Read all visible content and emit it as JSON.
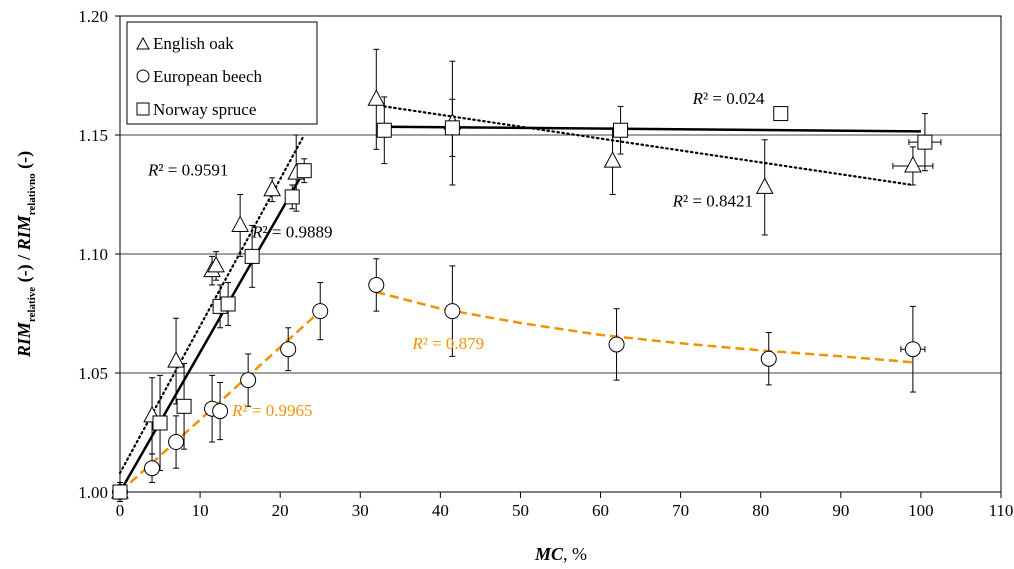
{
  "chart_data": {
    "type": "scatter",
    "xlabel_main": "MC",
    "xlabel_rest": ", %",
    "ylabel": {
      "part1": "RIM",
      "sub1": "relative",
      "part2": " (-) / ",
      "part3": "RIM",
      "sub2": "relativno",
      "part4": " (-)"
    },
    "xlim": [
      0,
      110
    ],
    "ylim": [
      1.0,
      1.2
    ],
    "xticks": [
      "0",
      "10",
      "20",
      "30",
      "40",
      "50",
      "60",
      "70",
      "80",
      "90",
      "100",
      "110"
    ],
    "yticks": [
      "1.00",
      "1.05",
      "1.10",
      "1.15",
      "1.20"
    ],
    "grid": "horizontal",
    "legend_position": "top-left",
    "series": [
      {
        "name": "English oak",
        "marker": "triangle",
        "color": "#000000",
        "points": [
          {
            "x": 0,
            "y": 1.0,
            "err": 0.004
          },
          {
            "x": 4,
            "y": 1.032,
            "err": 0.016
          },
          {
            "x": 7,
            "y": 1.055,
            "err": 0.018
          },
          {
            "x": 11.5,
            "y": 1.093,
            "err": 0.006
          },
          {
            "x": 12,
            "y": 1.095,
            "err": 0.006
          },
          {
            "x": 15,
            "y": 1.112,
            "err": 0.013
          },
          {
            "x": 19,
            "y": 1.127,
            "err": 0.005
          },
          {
            "x": 22,
            "y": 1.134,
            "err": 0.016
          },
          {
            "x": 32,
            "y": 1.165,
            "err": 0.021
          },
          {
            "x": 41.5,
            "y": 1.155,
            "err": 0.026
          },
          {
            "x": 61.5,
            "y": 1.139,
            "err": 0.014
          },
          {
            "x": 80.5,
            "y": 1.128,
            "err": 0.02
          },
          {
            "x": 99,
            "y": 1.137,
            "err": 0.008,
            "xerr": 2.5
          }
        ]
      },
      {
        "name": "European beech",
        "marker": "circle",
        "color": "#000000",
        "points": [
          {
            "x": 0,
            "y": 1.0,
            "err": 0.004
          },
          {
            "x": 4,
            "y": 1.01,
            "err": 0.006
          },
          {
            "x": 7,
            "y": 1.021,
            "err": 0.011
          },
          {
            "x": 11.5,
            "y": 1.035,
            "err": 0.014
          },
          {
            "x": 12.5,
            "y": 1.034,
            "err": 0.012
          },
          {
            "x": 16,
            "y": 1.047,
            "err": 0.011
          },
          {
            "x": 21,
            "y": 1.06,
            "err": 0.009
          },
          {
            "x": 25,
            "y": 1.076,
            "err": 0.012
          },
          {
            "x": 32,
            "y": 1.087,
            "err": 0.011
          },
          {
            "x": 41.5,
            "y": 1.076,
            "err": 0.019
          },
          {
            "x": 62,
            "y": 1.062,
            "err": 0.015
          },
          {
            "x": 81,
            "y": 1.056,
            "err": 0.011
          },
          {
            "x": 99,
            "y": 1.06,
            "err": 0.018,
            "xerr": 1.5
          }
        ]
      },
      {
        "name": "Norway spruce",
        "marker": "square",
        "color": "#000000",
        "points": [
          {
            "x": 0,
            "y": 1.0,
            "err": 0.004
          },
          {
            "x": 5,
            "y": 1.029,
            "err": 0.02
          },
          {
            "x": 8,
            "y": 1.036,
            "err": 0.018
          },
          {
            "x": 12.5,
            "y": 1.078,
            "err": 0.009
          },
          {
            "x": 13.5,
            "y": 1.079,
            "err": 0.009
          },
          {
            "x": 16.5,
            "y": 1.099,
            "err": 0.013
          },
          {
            "x": 21.5,
            "y": 1.124,
            "err": 0.005
          },
          {
            "x": 23,
            "y": 1.135,
            "err": 0.005
          },
          {
            "x": 33,
            "y": 1.152,
            "err": 0.014
          },
          {
            "x": 41.5,
            "y": 1.153,
            "err": 0.012
          },
          {
            "x": 62.5,
            "y": 1.152,
            "err": 0.01
          },
          {
            "x": 82.5,
            "y": 1.159,
            "err": 0
          },
          {
            "x": 100.5,
            "y": 1.147,
            "err": 0.012,
            "xerr": 2
          }
        ]
      }
    ],
    "trendlines": [
      {
        "series": "English oak",
        "style": "dotted",
        "color": "#000000",
        "x": [
          0,
          23
        ],
        "y": [
          1.008,
          1.15
        ]
      },
      {
        "series": "English oak",
        "style": "dotted",
        "color": "#000000",
        "x": [
          33,
          99
        ],
        "y": [
          1.162,
          1.129
        ]
      },
      {
        "series": "Norway spruce",
        "style": "solid",
        "color": "#000000",
        "x": [
          0,
          23
        ],
        "y": [
          1.0,
          1.135
        ]
      },
      {
        "series": "Norway spruce",
        "style": "solid",
        "color": "#000000",
        "x": [
          33,
          100
        ],
        "y": [
          1.1535,
          1.1515
        ]
      },
      {
        "series": "European beech",
        "style": "dashed",
        "color": "#f39200",
        "x": [
          0,
          25
        ],
        "y": [
          1.0,
          1.076
        ]
      },
      {
        "series": "European beech",
        "style": "dashed",
        "color": "#f39200",
        "x": [
          32,
          40,
          50,
          60,
          70,
          80,
          90,
          99
        ],
        "y": [
          1.084,
          1.077,
          1.071,
          1.066,
          1.0625,
          1.0595,
          1.057,
          1.0545
        ]
      }
    ],
    "annotations": [
      {
        "prefix": "R",
        "text": "² = 0.9591",
        "x": 3.5,
        "y": 1.133,
        "color": "#000000"
      },
      {
        "prefix": "R",
        "text": "² = 0.9889",
        "x": 16.5,
        "y": 1.107,
        "color": "#000000"
      },
      {
        "prefix": "R",
        "text": "² = 0.9965",
        "x": 14,
        "y": 1.032,
        "color": "#f39200"
      },
      {
        "prefix": "R",
        "text": "² = 0.879",
        "x": 36.5,
        "y": 1.06,
        "color": "#f39200"
      },
      {
        "prefix": "R",
        "text": "² = 0.024",
        "x": 71.5,
        "y": 1.163,
        "color": "#000000"
      },
      {
        "prefix": "R",
        "text": "² = 0.8421",
        "x": 69,
        "y": 1.12,
        "color": "#000000"
      }
    ]
  }
}
